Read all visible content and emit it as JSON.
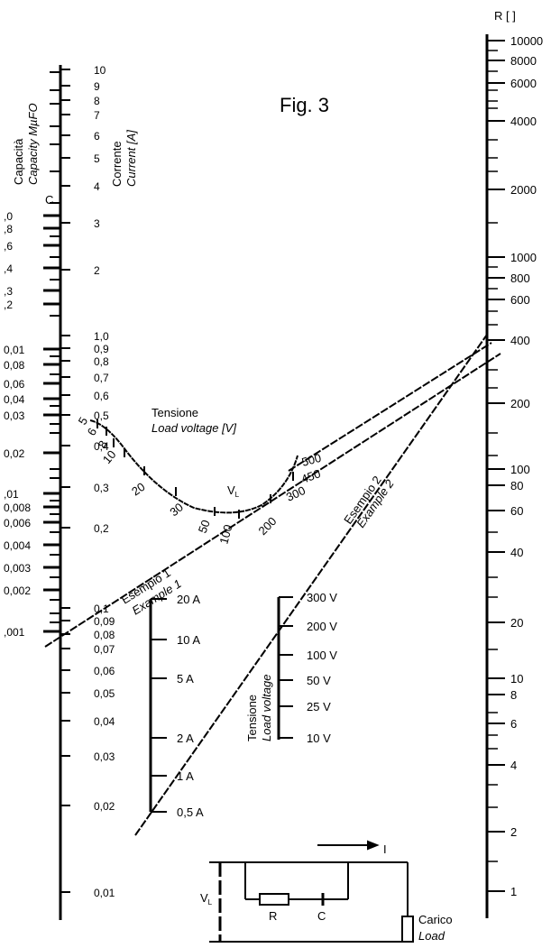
{
  "figure_title": "Fig. 3",
  "right_scale": {
    "header": "R [  ]",
    "labels": [
      "10000",
      "8000",
      "6000",
      "4000",
      "2000",
      "1000",
      "800",
      "600",
      "400",
      "200",
      "100",
      "80",
      "60",
      "40",
      "20",
      "10",
      "8",
      "6",
      "4",
      "2",
      "1"
    ]
  },
  "capacity_scale": {
    "label_it": "Capacità",
    "label_en": "Capacity MµFO",
    "marker": "C",
    "labels": [
      ",0",
      ",8",
      ",6",
      ",4",
      ",3",
      ",2",
      "0,01",
      "0,08",
      "0,06",
      "0,04",
      "0,03",
      "0,02",
      ",01",
      "0,008",
      "0,006",
      "0,004",
      "0,003",
      "0,002",
      ",001"
    ]
  },
  "current_scale": {
    "label_it": "Corrente",
    "label_en": "Current [A]",
    "labels": [
      "10",
      "9",
      "8",
      "7",
      "6",
      "5",
      "4",
      "3",
      "2",
      "1,0",
      "0,9",
      "0,8",
      "0,7",
      "0,6",
      "0,5",
      "0,4",
      "0,3",
      "0,2",
      "0,1",
      "0,09",
      "0,08",
      "0,07",
      "0,06",
      "0,05",
      "0,04",
      "0,03",
      "0,02",
      "0,01"
    ]
  },
  "voltage_curve": {
    "label_it": "Tensione",
    "label_en": "Load voltage [V]",
    "marker": "VL",
    "labels": [
      "5",
      "6",
      "8",
      "10",
      "20",
      "30",
      "50",
      "100",
      "200",
      "300",
      "450",
      "500"
    ]
  },
  "examples": {
    "ex1_it": "Esempio 1",
    "ex1_en": "Example 1",
    "ex2_it": "Esempio 2",
    "ex2_en": "Example 2"
  },
  "inset_current": {
    "labels": [
      "20 A",
      "10 A",
      "5 A",
      "2 A",
      "1 A",
      "0,5 A"
    ]
  },
  "inset_voltage": {
    "label_it": "Tensione",
    "label_en": "Load voltage",
    "labels": [
      "300 V",
      "200 V",
      "100 V",
      "50 V",
      "25 V",
      "10 V"
    ]
  },
  "circuit": {
    "current": "I",
    "voltage": "VL",
    "resistor": "R",
    "capacitor": "C",
    "load_it": "Carico",
    "load_en": "Load"
  }
}
